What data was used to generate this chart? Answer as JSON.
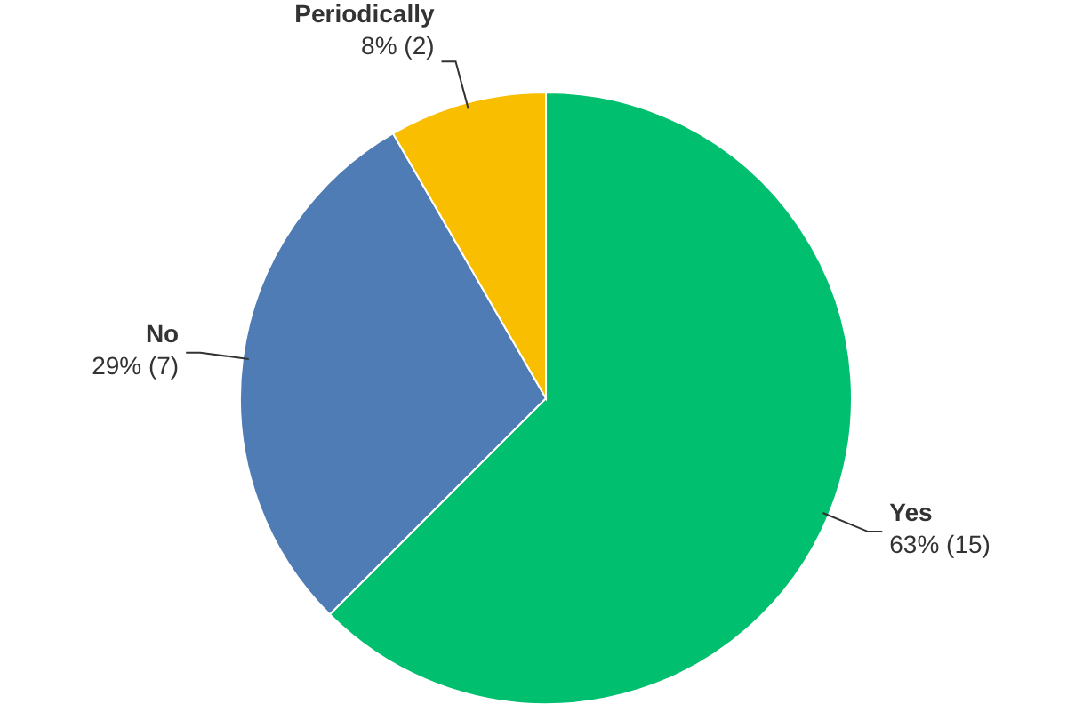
{
  "chart_data": {
    "type": "pie",
    "categories": [
      "Yes",
      "No",
      "Periodically"
    ],
    "values": [
      15,
      7,
      2
    ],
    "value_labels": [
      "63% (15)",
      "29% (7)",
      "8% (2)"
    ],
    "colors": [
      "#00bf6f",
      "#507cb6",
      "#f9be00"
    ],
    "legend": false
  }
}
